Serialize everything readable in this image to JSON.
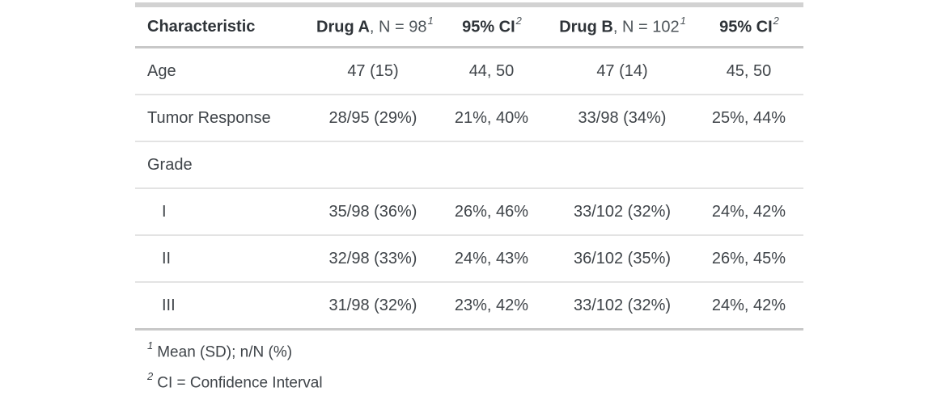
{
  "table": {
    "header": {
      "characteristic": "Characteristic",
      "drug_a_bold": "Drug A",
      "drug_a_rest": ", N = 98",
      "drug_a_sup": "1",
      "ci_a_bold": "95% CI",
      "ci_a_sup": "2",
      "drug_b_bold": "Drug B",
      "drug_b_rest": ", N = 102",
      "drug_b_sup": "1",
      "ci_b_bold": "95% CI",
      "ci_b_sup": "2"
    },
    "rows": [
      {
        "label": "Age",
        "values": [
          "47 (15)",
          "44, 50",
          "47 (14)",
          "45, 50"
        ]
      },
      {
        "label": "Tumor Response",
        "values": [
          "28/95 (29%)",
          "21%, 40%",
          "33/98 (34%)",
          "25%, 44%"
        ]
      },
      {
        "label": "Grade",
        "values": [
          "",
          "",
          "",
          ""
        ]
      },
      {
        "label": "I",
        "values": [
          "35/98 (36%)",
          "26%, 46%",
          "33/102 (32%)",
          "24%, 42%"
        ]
      },
      {
        "label": "II",
        "values": [
          "32/98 (33%)",
          "24%, 43%",
          "36/102 (35%)",
          "26%, 45%"
        ]
      },
      {
        "label": "III",
        "values": [
          "31/98 (32%)",
          "23%, 42%",
          "33/102 (32%)",
          "24%, 42%"
        ]
      }
    ],
    "footnotes": [
      {
        "marker": "1",
        "text": "Mean (SD); n/N (%)"
      },
      {
        "marker": "2",
        "text": "CI = Confidence Interval"
      }
    ],
    "colors": {
      "body_text": "#3f4449",
      "header_text": "#2e3338",
      "border_light": "#e3e3e3",
      "border_medium": "#c8c8c8",
      "border_heavy": "#bfbfbf",
      "background": "#ffffff"
    }
  },
  "chart_data": {
    "type": "table",
    "title": "Drug A vs Drug B summary table",
    "columns": [
      "Characteristic",
      "Drug A, N = 98",
      "95% CI",
      "Drug B, N = 102",
      "95% CI"
    ],
    "rows": [
      [
        "Age",
        "47 (15)",
        "44, 50",
        "47 (14)",
        "45, 50"
      ],
      [
        "Tumor Response",
        "28/95 (29%)",
        "21%, 40%",
        "33/98 (34%)",
        "25%, 44%"
      ],
      [
        "Grade",
        "",
        "",
        "",
        ""
      ],
      [
        "I",
        "35/98 (36%)",
        "26%, 46%",
        "33/102 (32%)",
        "24%, 42%"
      ],
      [
        "II",
        "32/98 (33%)",
        "24%, 43%",
        "36/102 (35%)",
        "26%, 45%"
      ],
      [
        "III",
        "31/98 (32%)",
        "23%, 42%",
        "33/102 (32%)",
        "24%, 42%"
      ]
    ],
    "footnotes": [
      "1 Mean (SD); n/N (%)",
      "2 CI = Confidence Interval"
    ]
  }
}
